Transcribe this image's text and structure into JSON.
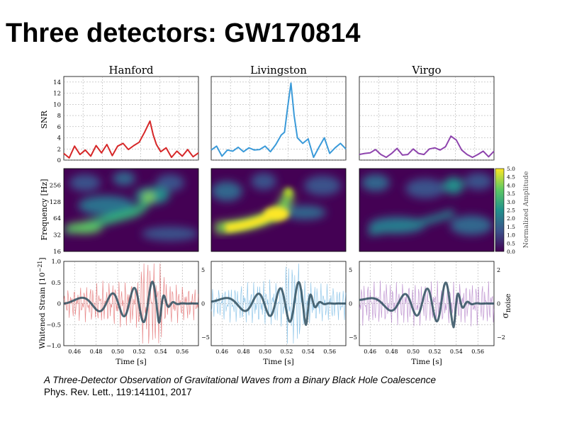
{
  "slide": {
    "title": "Three detectors: GW170814",
    "citation": {
      "paper_title": "A Three-Detector Observation of Gravitational Waves from a Binary Black Hole Coalescence",
      "journal": "Phys. Rev. Lett., 119:141101, 2017"
    }
  },
  "colors": {
    "hanford": "#d62728",
    "livingston": "#3a9ad9",
    "virgo": "#8e44ad",
    "strain_dark": "#2f4f5f",
    "colormap": [
      "#440154",
      "#3b528b",
      "#21918c",
      "#5ec962",
      "#fde725"
    ]
  },
  "chart_data": [
    {
      "type": "line",
      "panel": "snr",
      "detector_titles": [
        "Hanford",
        "Livingston",
        "Virgo"
      ],
      "ylabel": "SNR",
      "yticks": [
        0,
        2,
        4,
        6,
        8,
        10,
        12,
        14
      ],
      "ylim": [
        0,
        15
      ],
      "x_range": [
        0.45,
        0.575
      ],
      "grid": true,
      "series": [
        {
          "detector": "Hanford",
          "x": [
            0.45,
            0.455,
            0.46,
            0.465,
            0.47,
            0.475,
            0.48,
            0.485,
            0.49,
            0.495,
            0.5,
            0.505,
            0.51,
            0.515,
            0.52,
            0.525,
            0.53,
            0.533,
            0.536,
            0.54,
            0.545,
            0.55,
            0.555,
            0.56,
            0.565,
            0.57,
            0.575
          ],
          "values": [
            1.2,
            0.4,
            2.5,
            1.0,
            1.8,
            0.7,
            2.6,
            1.3,
            2.8,
            0.8,
            2.5,
            3.0,
            1.9,
            2.6,
            3.2,
            5.0,
            7.0,
            4.5,
            2.8,
            1.5,
            2.2,
            0.5,
            1.6,
            0.7,
            1.9,
            0.6,
            1.3
          ]
        },
        {
          "detector": "Livingston",
          "x": [
            0.45,
            0.455,
            0.46,
            0.465,
            0.47,
            0.475,
            0.48,
            0.485,
            0.49,
            0.495,
            0.5,
            0.505,
            0.51,
            0.515,
            0.518,
            0.521,
            0.524,
            0.527,
            0.53,
            0.535,
            0.54,
            0.545,
            0.55,
            0.555,
            0.56,
            0.565,
            0.57,
            0.575
          ],
          "values": [
            1.8,
            2.5,
            0.7,
            1.8,
            1.6,
            2.3,
            1.5,
            2.2,
            1.8,
            1.9,
            2.5,
            1.5,
            2.8,
            4.5,
            5.0,
            9.5,
            13.8,
            8.0,
            4.0,
            3.0,
            3.8,
            0.5,
            2.3,
            4.0,
            1.2,
            2.2,
            3.0,
            2.0
          ]
        },
        {
          "detector": "Virgo",
          "x": [
            0.45,
            0.455,
            0.46,
            0.465,
            0.47,
            0.475,
            0.48,
            0.485,
            0.49,
            0.495,
            0.5,
            0.505,
            0.51,
            0.515,
            0.52,
            0.525,
            0.53,
            0.535,
            0.54,
            0.545,
            0.55,
            0.555,
            0.56,
            0.565,
            0.57,
            0.575
          ],
          "values": [
            1.0,
            1.2,
            1.3,
            1.9,
            1.0,
            0.5,
            1.2,
            2.1,
            0.9,
            1.0,
            2.0,
            1.2,
            1.0,
            2.0,
            2.2,
            1.8,
            2.4,
            4.3,
            3.6,
            1.8,
            1.0,
            0.5,
            1.0,
            1.6,
            0.6,
            1.6
          ]
        }
      ]
    },
    {
      "type": "heatmap",
      "panel": "spectrogram",
      "ylabel": "Frequency [Hz]",
      "yticks": [
        16,
        32,
        64,
        128,
        256
      ],
      "colorbar_label": "Normalized Amplitude",
      "colorbar_ticks": [
        "0.0",
        "0.5",
        "1.0",
        "1.5",
        "2.0",
        "2.5",
        "3.0",
        "3.5",
        "4.0",
        "4.5",
        "5.0"
      ],
      "clim": [
        0,
        5
      ]
    },
    {
      "type": "line",
      "panel": "strain",
      "ylabel": "Whitened Strain [10",
      "ylabel_exponent": "−21",
      "ylabel_close": "]",
      "yticks_left": [
        "1.0",
        "0.5",
        "0",
        "−0.5",
        "−1.0"
      ],
      "yticks_right_hl": [
        "5",
        "0",
        "−5"
      ],
      "yticks_right_v": [
        "2",
        "0",
        "−2"
      ],
      "right_ylabel_main": "σ",
      "right_ylabel_sub": "noise",
      "xlabel": "Time [s]",
      "xticks": [
        "0.46",
        "0.48",
        "0.50",
        "0.52",
        "0.54",
        "0.56"
      ],
      "xlim": [
        0.45,
        0.575
      ]
    }
  ]
}
